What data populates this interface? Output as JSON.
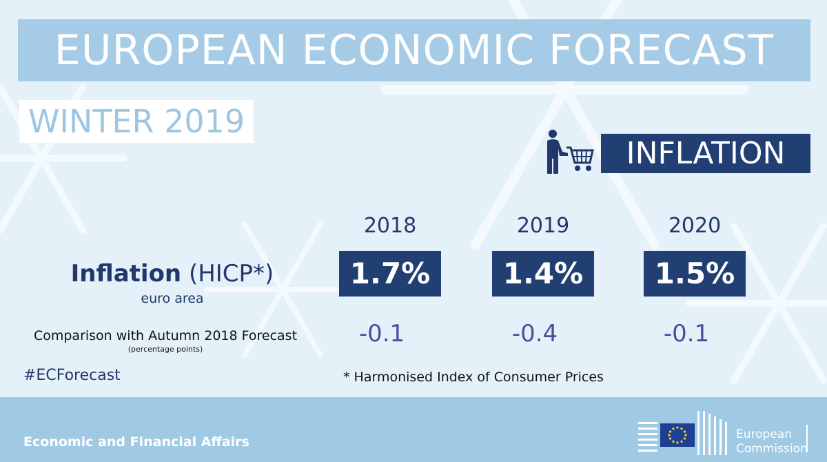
{
  "header": {
    "title": "EUROPEAN ECONOMIC FORECAST",
    "season": "WINTER 2019",
    "topic": "INFLATION",
    "topic_icon": "shopping-cart-person-icon"
  },
  "table": {
    "years": [
      "2018",
      "2019",
      "2020"
    ],
    "row_label": "Inflation",
    "row_label_suffix": "(HICP*)",
    "row_sublabel": "euro area",
    "values": [
      "1.7%",
      "1.4%",
      "1.5%"
    ],
    "comparison_label": "Comparison with Autumn 2018 Forecast",
    "comparison_sublabel": "(percentage points)",
    "comparison_values": [
      "-0.1",
      "-0.4",
      "-0.1"
    ]
  },
  "hashtag": "#ECForecast",
  "footnote": "* Harmonised Index of Consumer Prices",
  "footer": {
    "department": "Economic and Financial Affairs",
    "logo_line1": "European",
    "logo_line2": "Commission"
  },
  "colors": {
    "background": "#e4f1f9",
    "title_box": "#a5cbe6",
    "navy": "#223f73",
    "comparison_text": "#4b4e9e",
    "footer": "#a0c9e4"
  }
}
